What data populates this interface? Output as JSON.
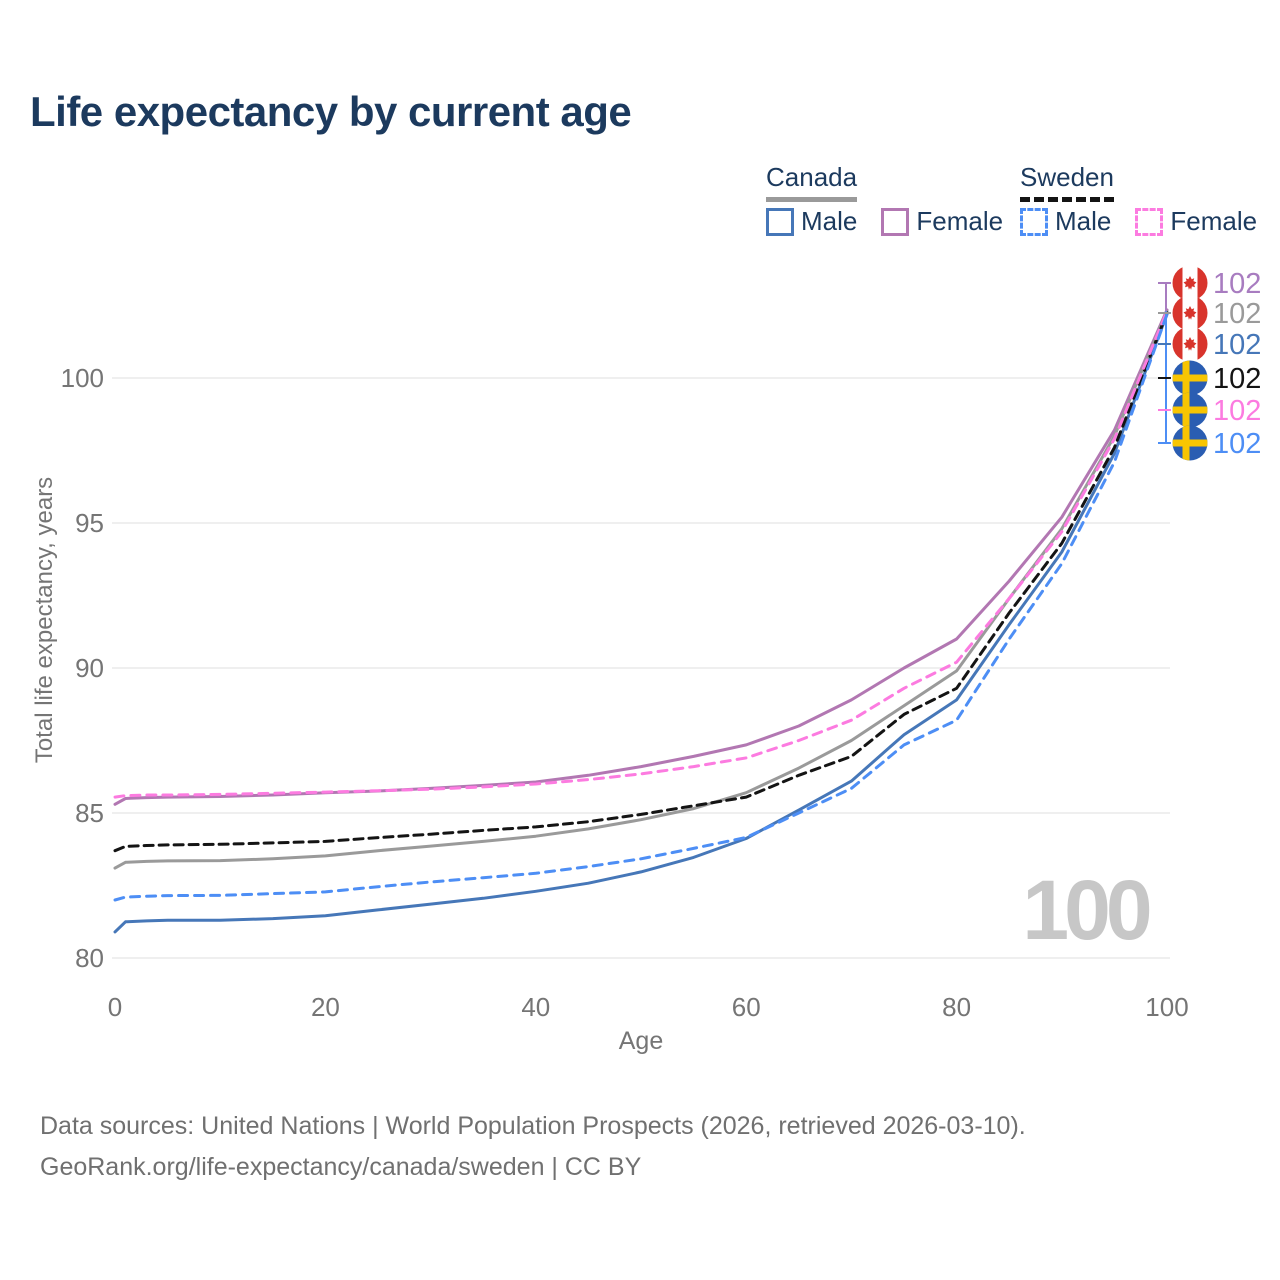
{
  "title": "Life expectancy by current age",
  "legend": {
    "groups": [
      {
        "label": "Canada",
        "line_style": "solid",
        "underline_color": "#9a9a9a",
        "items": [
          {
            "label": "Male",
            "color": "#4677b8",
            "dashed": false
          },
          {
            "label": "Female",
            "color": "#b277b2",
            "dashed": false
          }
        ]
      },
      {
        "label": "Sweden",
        "line_style": "dashed",
        "underline_color": "#141414",
        "items": [
          {
            "label": "Male",
            "color": "#4d8ef5",
            "dashed": true
          },
          {
            "label": "Female",
            "color": "#fc7be0",
            "dashed": true
          }
        ]
      }
    ]
  },
  "chart_data": {
    "type": "line",
    "title": "Life expectancy by current age",
    "xlabel": "Age",
    "ylabel": "Total life expectancy, years",
    "x_ticks": [
      0,
      20,
      40,
      60,
      80,
      100
    ],
    "y_ticks": [
      80,
      85,
      90,
      95,
      100
    ],
    "xlim": [
      0,
      100
    ],
    "ylim": [
      79.5,
      102.5
    ],
    "grid": "horizontal",
    "legend_position": "top-right",
    "x": [
      0,
      1,
      3,
      5,
      10,
      15,
      20,
      25,
      30,
      35,
      40,
      45,
      50,
      55,
      60,
      65,
      70,
      75,
      80,
      85,
      90,
      95,
      100
    ],
    "series": [
      {
        "name": "Canada Female",
        "country": "Canada",
        "sex": "Female",
        "color": "#b277b2",
        "dash": "",
        "values": [
          85.3,
          85.5,
          85.53,
          85.55,
          85.57,
          85.62,
          85.7,
          85.76,
          85.85,
          85.95,
          86.07,
          86.3,
          86.6,
          86.95,
          87.35,
          88.0,
          88.9,
          90.0,
          91.0,
          93.0,
          95.2,
          98.2,
          102.35
        ]
      },
      {
        "name": "Canada Average",
        "country": "Canada",
        "sex": "All",
        "color": "#9a9a9a",
        "dash": "",
        "values": [
          83.1,
          83.3,
          83.33,
          83.35,
          83.36,
          83.42,
          83.52,
          83.7,
          83.86,
          84.02,
          84.2,
          84.45,
          84.77,
          85.15,
          85.7,
          86.55,
          87.5,
          88.7,
          89.9,
          92.4,
          94.8,
          98.0,
          102.3
        ]
      },
      {
        "name": "Canada Male",
        "country": "Canada",
        "sex": "Male",
        "color": "#4677b8",
        "dash": "",
        "values": [
          80.9,
          81.25,
          81.28,
          81.3,
          81.3,
          81.36,
          81.46,
          81.66,
          81.86,
          82.06,
          82.3,
          82.58,
          82.97,
          83.47,
          84.12,
          85.1,
          86.1,
          87.7,
          88.9,
          91.5,
          94.0,
          97.4,
          102.2
        ]
      },
      {
        "name": "Sweden Average",
        "country": "Sweden",
        "sex": "All",
        "color": "#141414",
        "dash": "9 6",
        "values": [
          83.7,
          83.85,
          83.88,
          83.9,
          83.92,
          83.97,
          84.02,
          84.15,
          84.27,
          84.4,
          84.52,
          84.7,
          84.95,
          85.25,
          85.55,
          86.3,
          86.95,
          88.4,
          89.3,
          91.9,
          94.3,
          97.6,
          102.25
        ]
      },
      {
        "name": "Sweden Female",
        "country": "Sweden",
        "sex": "Female",
        "color": "#fc7be0",
        "dash": "9 7",
        "values": [
          85.55,
          85.6,
          85.62,
          85.62,
          85.64,
          85.68,
          85.72,
          85.77,
          85.82,
          85.9,
          86.0,
          86.15,
          86.35,
          86.6,
          86.9,
          87.5,
          88.2,
          89.3,
          90.2,
          92.4,
          94.7,
          97.9,
          102.3
        ]
      },
      {
        "name": "Sweden Male",
        "country": "Sweden",
        "sex": "Male",
        "color": "#4d8ef5",
        "dash": "9 7",
        "values": [
          82.0,
          82.1,
          82.13,
          82.15,
          82.16,
          82.22,
          82.28,
          82.46,
          82.62,
          82.77,
          82.92,
          83.15,
          83.42,
          83.78,
          84.16,
          85.0,
          85.85,
          87.35,
          88.2,
          91.0,
          93.6,
          97.1,
          102.2
        ]
      }
    ],
    "end_labels": [
      {
        "series": "Canada Female",
        "flag": "canada",
        "value": "102",
        "color": "#a87cc0"
      },
      {
        "series": "Canada Average",
        "flag": "canada",
        "value": "102",
        "color": "#9a9a9a"
      },
      {
        "series": "Canada Male",
        "flag": "canada",
        "value": "102",
        "color": "#4677b8"
      },
      {
        "series": "Sweden Average",
        "flag": "sweden",
        "value": "102",
        "color": "#141414"
      },
      {
        "series": "Sweden Female",
        "flag": "sweden",
        "value": "102",
        "color": "#fc7be0"
      },
      {
        "series": "Sweden Male",
        "flag": "sweden",
        "value": "102",
        "color": "#4d8ef5"
      }
    ],
    "annotation_age": "100"
  },
  "watermark": "100",
  "footer": {
    "line1": "Data sources: United Nations | World Population Prospects (2026, retrieved 2026-03-10).",
    "line2": "GeoRank.org/life-expectancy/canada/sweden | CC BY"
  },
  "colors": {
    "title_text": "#1c3a5e",
    "axis_text": "#757575",
    "gridline": "#eaeaea",
    "watermark": "#c7c7c7",
    "canada_flag_red": "#d8342c",
    "sweden_flag_blue": "#2a5db2",
    "sweden_flag_yellow": "#f8c502"
  }
}
